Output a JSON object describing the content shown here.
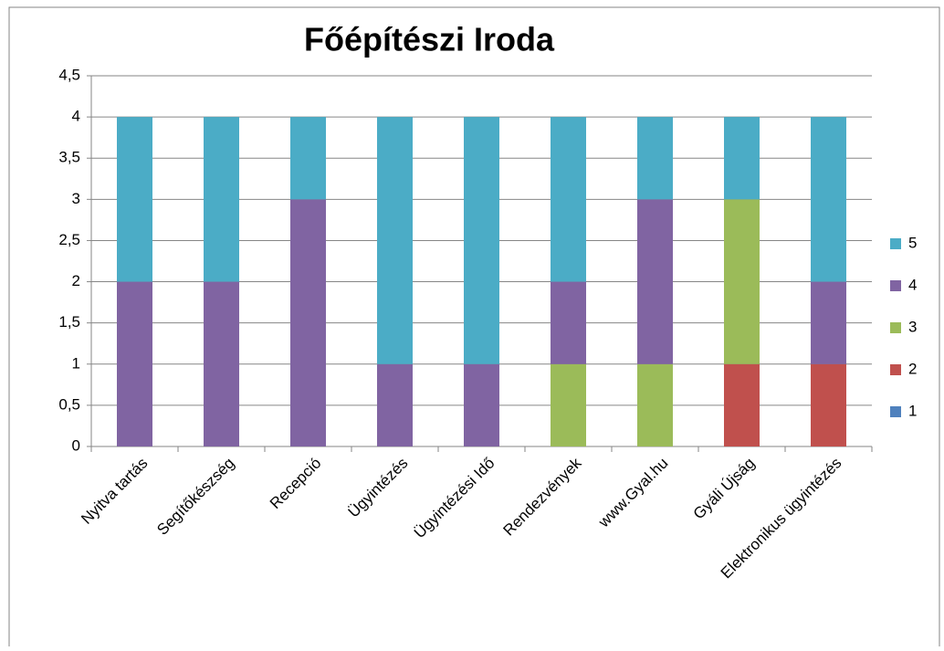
{
  "chart_data": {
    "type": "stacked_bar",
    "title": "Főépítészi Iroda",
    "categories": [
      "Nyitva tartás",
      "Segítőkészség",
      "Recepció",
      "Ügyintézés",
      "Ügyintézési Idő",
      "Rendezvények",
      "www.Gyal.hu",
      "Gyáli Újság",
      "Elektronikus ügyintézés"
    ],
    "series": [
      {
        "name": "1",
        "color": "#4f81bd",
        "values": [
          0,
          0,
          0,
          0,
          0,
          0,
          0,
          0,
          0
        ]
      },
      {
        "name": "2",
        "color": "#c0504d",
        "values": [
          0,
          0,
          0,
          0,
          0,
          0,
          0,
          1,
          1
        ]
      },
      {
        "name": "3",
        "color": "#9bbb59",
        "values": [
          0,
          0,
          0,
          0,
          0,
          1,
          1,
          2,
          0
        ]
      },
      {
        "name": "4",
        "color": "#8064a2",
        "values": [
          2,
          2,
          3,
          1,
          1,
          1,
          2,
          0,
          1
        ]
      },
      {
        "name": "5",
        "color": "#4bacc6",
        "values": [
          2,
          2,
          1,
          3,
          3,
          2,
          1,
          1,
          2
        ]
      }
    ],
    "ylim": [
      0,
      4.5
    ],
    "yticks": [
      0,
      {
        "value": 0.5,
        "label": "0,5"
      },
      1,
      {
        "value": 1.5,
        "label": "1,5"
      },
      2,
      {
        "value": 2.5,
        "label": "2,5"
      },
      3,
      {
        "value": 3.5,
        "label": "3,5"
      },
      4,
      {
        "value": 4.5,
        "label": "4,5"
      }
    ],
    "grid": true,
    "legend": "right"
  }
}
